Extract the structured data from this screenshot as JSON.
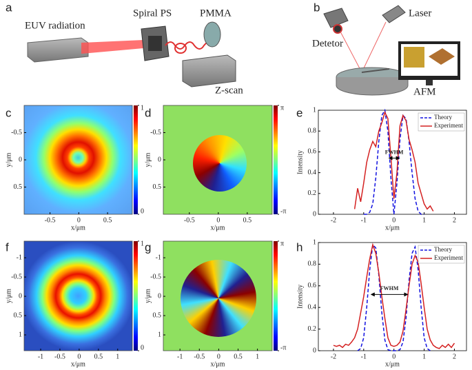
{
  "figure": {
    "schematic_a": {
      "panel": "a",
      "labels": [
        "EUV radiation",
        "Spiral PS",
        "PMMA",
        "Z-scan"
      ]
    },
    "schematic_b": {
      "panel": "b",
      "labels": [
        "Laser",
        "Detetor",
        "AFM"
      ]
    }
  },
  "chart_data": [
    {
      "type": "heatmap",
      "panel": "c",
      "colormap": "jet",
      "x_label": "x/μm",
      "y_label": "y/μm",
      "xlim": [
        -0.95,
        0.93
      ],
      "ylim": [
        -1.0,
        1.0
      ],
      "xticks": [
        -0.5,
        0,
        0.5
      ],
      "yticks": [
        -0.5,
        0,
        0.5
      ],
      "colorbar_lim": [
        0,
        1
      ],
      "colorbar_ticks": [
        0,
        1
      ]
    },
    {
      "type": "heatmap",
      "panel": "d",
      "colormap": "jet",
      "x_label": "x/μm",
      "y_label": "y/μm",
      "xlim": [
        -0.95,
        0.93
      ],
      "ylim": [
        -1.0,
        1.0
      ],
      "xticks": [
        -0.5,
        0,
        0.5
      ],
      "yticks": [
        -0.5,
        0,
        0.5
      ],
      "colorbar_lim": [
        -3.1416,
        3.1416
      ],
      "colorbar_ticks": [
        {
          "value": -3.1416,
          "label": "-π"
        },
        {
          "value": 3.1416,
          "label": "π"
        }
      ]
    },
    {
      "type": "line",
      "panel": "e",
      "x_label": "x/μm",
      "y_label": "Intensity",
      "legend": "upper right",
      "xlim": [
        -2.5,
        2.4
      ],
      "ylim": [
        0,
        1
      ],
      "xticks": [
        -2,
        -1,
        0,
        1,
        2
      ],
      "yticks": [
        0,
        0.2,
        0.4,
        0.6,
        0.8,
        1
      ],
      "annotation": {
        "text": "FWHM",
        "x": [
          -0.16,
          0.18
        ],
        "y": 0.54
      },
      "series": [
        {
          "name": "Theory",
          "color": "#1010e0",
          "dashed": true,
          "x": [
            -1.0,
            -0.9,
            -0.8,
            -0.7,
            -0.6,
            -0.5,
            -0.4,
            -0.3,
            -0.2,
            -0.1,
            0,
            0.1,
            0.2,
            0.3,
            0.4,
            0.5,
            0.6,
            0.7,
            0.8,
            0.9,
            1.0
          ],
          "values": [
            0,
            0,
            0.02,
            0.1,
            0.35,
            0.7,
            0.95,
            1.0,
            0.8,
            0.35,
            0,
            0.3,
            0.72,
            0.95,
            0.92,
            0.7,
            0.4,
            0.15,
            0.03,
            0,
            0
          ]
        },
        {
          "name": "Experiment",
          "color": "#d42020",
          "dashed": false,
          "x": [
            -1.3,
            -1.2,
            -1.1,
            -1.0,
            -0.9,
            -0.8,
            -0.7,
            -0.6,
            -0.5,
            -0.4,
            -0.3,
            -0.2,
            -0.1,
            0,
            0.1,
            0.2,
            0.3,
            0.4,
            0.5,
            0.6,
            0.7,
            0.8,
            0.9,
            1.0,
            1.1,
            1.2,
            1.3
          ],
          "values": [
            0.05,
            0.25,
            0.12,
            0.3,
            0.5,
            0.62,
            0.7,
            0.65,
            0.8,
            0.88,
            0.98,
            0.92,
            0.55,
            0.15,
            0.4,
            0.85,
            0.95,
            0.9,
            0.72,
            0.62,
            0.5,
            0.3,
            0.2,
            0.1,
            0.05,
            0.08,
            0.03
          ]
        }
      ]
    },
    {
      "type": "heatmap",
      "panel": "f",
      "colormap": "jet",
      "x_label": "x/μm",
      "y_label": "y/μm",
      "xlim": [
        -1.43,
        1.38
      ],
      "ylim": [
        -1.43,
        1.41
      ],
      "xticks": [
        -1,
        -0.5,
        0,
        0.5,
        1
      ],
      "yticks": [
        -1,
        -0.5,
        0,
        0.5,
        1
      ],
      "colorbar_lim": [
        0,
        1
      ],
      "colorbar_ticks": [
        0,
        1
      ]
    },
    {
      "type": "heatmap",
      "panel": "g",
      "colormap": "jet",
      "x_label": "x/μm",
      "y_label": "y/μm",
      "xlim": [
        -1.43,
        1.38
      ],
      "ylim": [
        -1.43,
        1.41
      ],
      "xticks": [
        -1,
        -0.5,
        0,
        0.5,
        1
      ],
      "yticks": [
        -1,
        -0.5,
        0,
        0.5,
        1
      ],
      "colorbar_lim": [
        -3.1416,
        3.1416
      ],
      "colorbar_ticks": [
        {
          "value": -3.1416,
          "label": "-π"
        },
        {
          "value": 3.1416,
          "label": "π"
        }
      ]
    },
    {
      "type": "line",
      "panel": "h",
      "x_label": "x/μm",
      "y_label": "Intensity",
      "legend": "upper right",
      "xlim": [
        -2.5,
        2.4
      ],
      "ylim": [
        0,
        1
      ],
      "xticks": [
        -2,
        -1,
        0,
        1,
        2
      ],
      "yticks": [
        0,
        0.2,
        0.4,
        0.6,
        0.8,
        1
      ],
      "annotation": {
        "text": "FWHM",
        "x": [
          -0.75,
          0.45
        ],
        "y": 0.52
      },
      "series": [
        {
          "name": "Theory",
          "color": "#1010e0",
          "dashed": true,
          "x": [
            -1.2,
            -1.1,
            -1.0,
            -0.9,
            -0.8,
            -0.7,
            -0.6,
            -0.5,
            -0.4,
            -0.3,
            -0.2,
            -0.1,
            0,
            0.1,
            0.2,
            0.3,
            0.4,
            0.5,
            0.6,
            0.7,
            0.8,
            0.9,
            1.0,
            1.1,
            1.2
          ],
          "values": [
            0,
            0.02,
            0.12,
            0.4,
            0.75,
            0.98,
            0.95,
            0.7,
            0.35,
            0.1,
            0.01,
            0,
            0,
            0,
            0.01,
            0.08,
            0.3,
            0.65,
            0.9,
            0.96,
            0.75,
            0.4,
            0.12,
            0.02,
            0
          ]
        },
        {
          "name": "Experiment",
          "color": "#d42020",
          "dashed": false,
          "x": [
            -2.0,
            -1.9,
            -1.8,
            -1.7,
            -1.6,
            -1.5,
            -1.4,
            -1.3,
            -1.2,
            -1.1,
            -1.0,
            -0.9,
            -0.8,
            -0.7,
            -0.6,
            -0.5,
            -0.4,
            -0.3,
            -0.2,
            -0.1,
            0,
            0.1,
            0.2,
            0.3,
            0.4,
            0.5,
            0.6,
            0.7,
            0.8,
            0.9,
            1.0,
            1.1,
            1.2,
            1.3,
            1.4,
            1.5,
            1.6,
            1.7,
            1.8,
            1.9,
            2.0
          ],
          "values": [
            0.05,
            0.04,
            0.05,
            0.03,
            0.06,
            0.05,
            0.08,
            0.12,
            0.2,
            0.35,
            0.5,
            0.68,
            0.85,
            0.98,
            0.9,
            0.72,
            0.5,
            0.3,
            0.12,
            0.05,
            0.04,
            0.05,
            0.08,
            0.18,
            0.38,
            0.6,
            0.8,
            0.88,
            0.82,
            0.62,
            0.4,
            0.2,
            0.1,
            0.05,
            0.03,
            0.02,
            0.05,
            0.03,
            0.06,
            0.03,
            0.07
          ]
        }
      ]
    }
  ]
}
